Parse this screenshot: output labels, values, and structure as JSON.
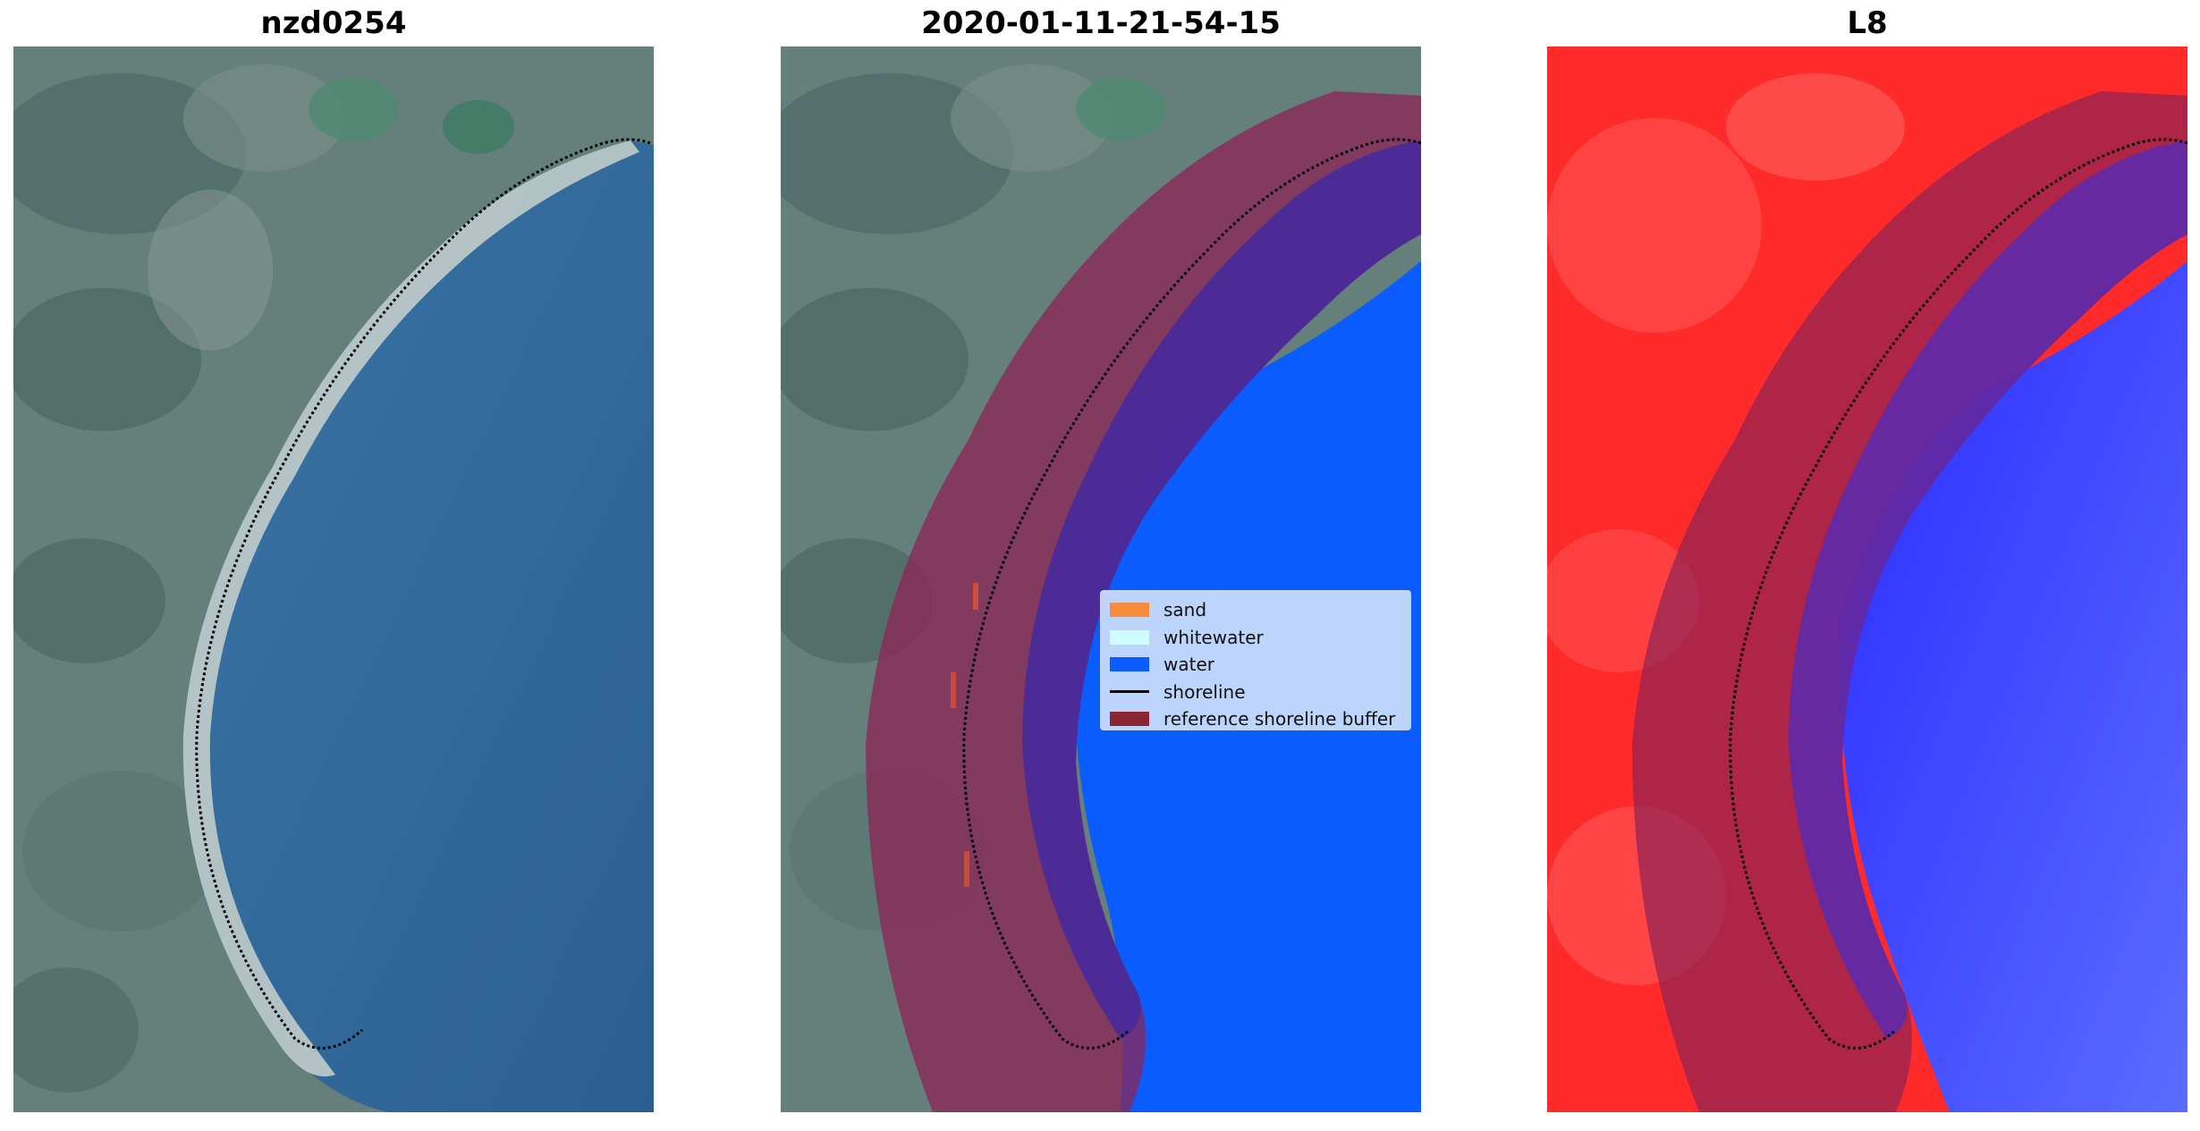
{
  "panels": [
    {
      "title": "nzd0254",
      "view": "rgb-satellite"
    },
    {
      "title": "2020-01-11-21-54-15",
      "view": "classified-overlay"
    },
    {
      "title": "L8",
      "view": "index-colormap"
    }
  ],
  "legend": {
    "items": [
      {
        "label": "sand",
        "color": "#f98b3c",
        "kind": "patch"
      },
      {
        "label": "whitewater",
        "color": "#cffcff",
        "kind": "patch"
      },
      {
        "label": "water",
        "color": "#0a5cff",
        "kind": "patch"
      },
      {
        "label": "shoreline",
        "color": "#000000",
        "kind": "line"
      },
      {
        "label": "reference shoreline buffer",
        "color": "#8c2433",
        "kind": "patch"
      }
    ]
  },
  "colors": {
    "sea": "#2f6698",
    "land": "#5f7c78",
    "buffer": "#8c2456",
    "water_class": "#0a5cff",
    "index_land": "#ff2020",
    "index_water": "#1010ff"
  }
}
